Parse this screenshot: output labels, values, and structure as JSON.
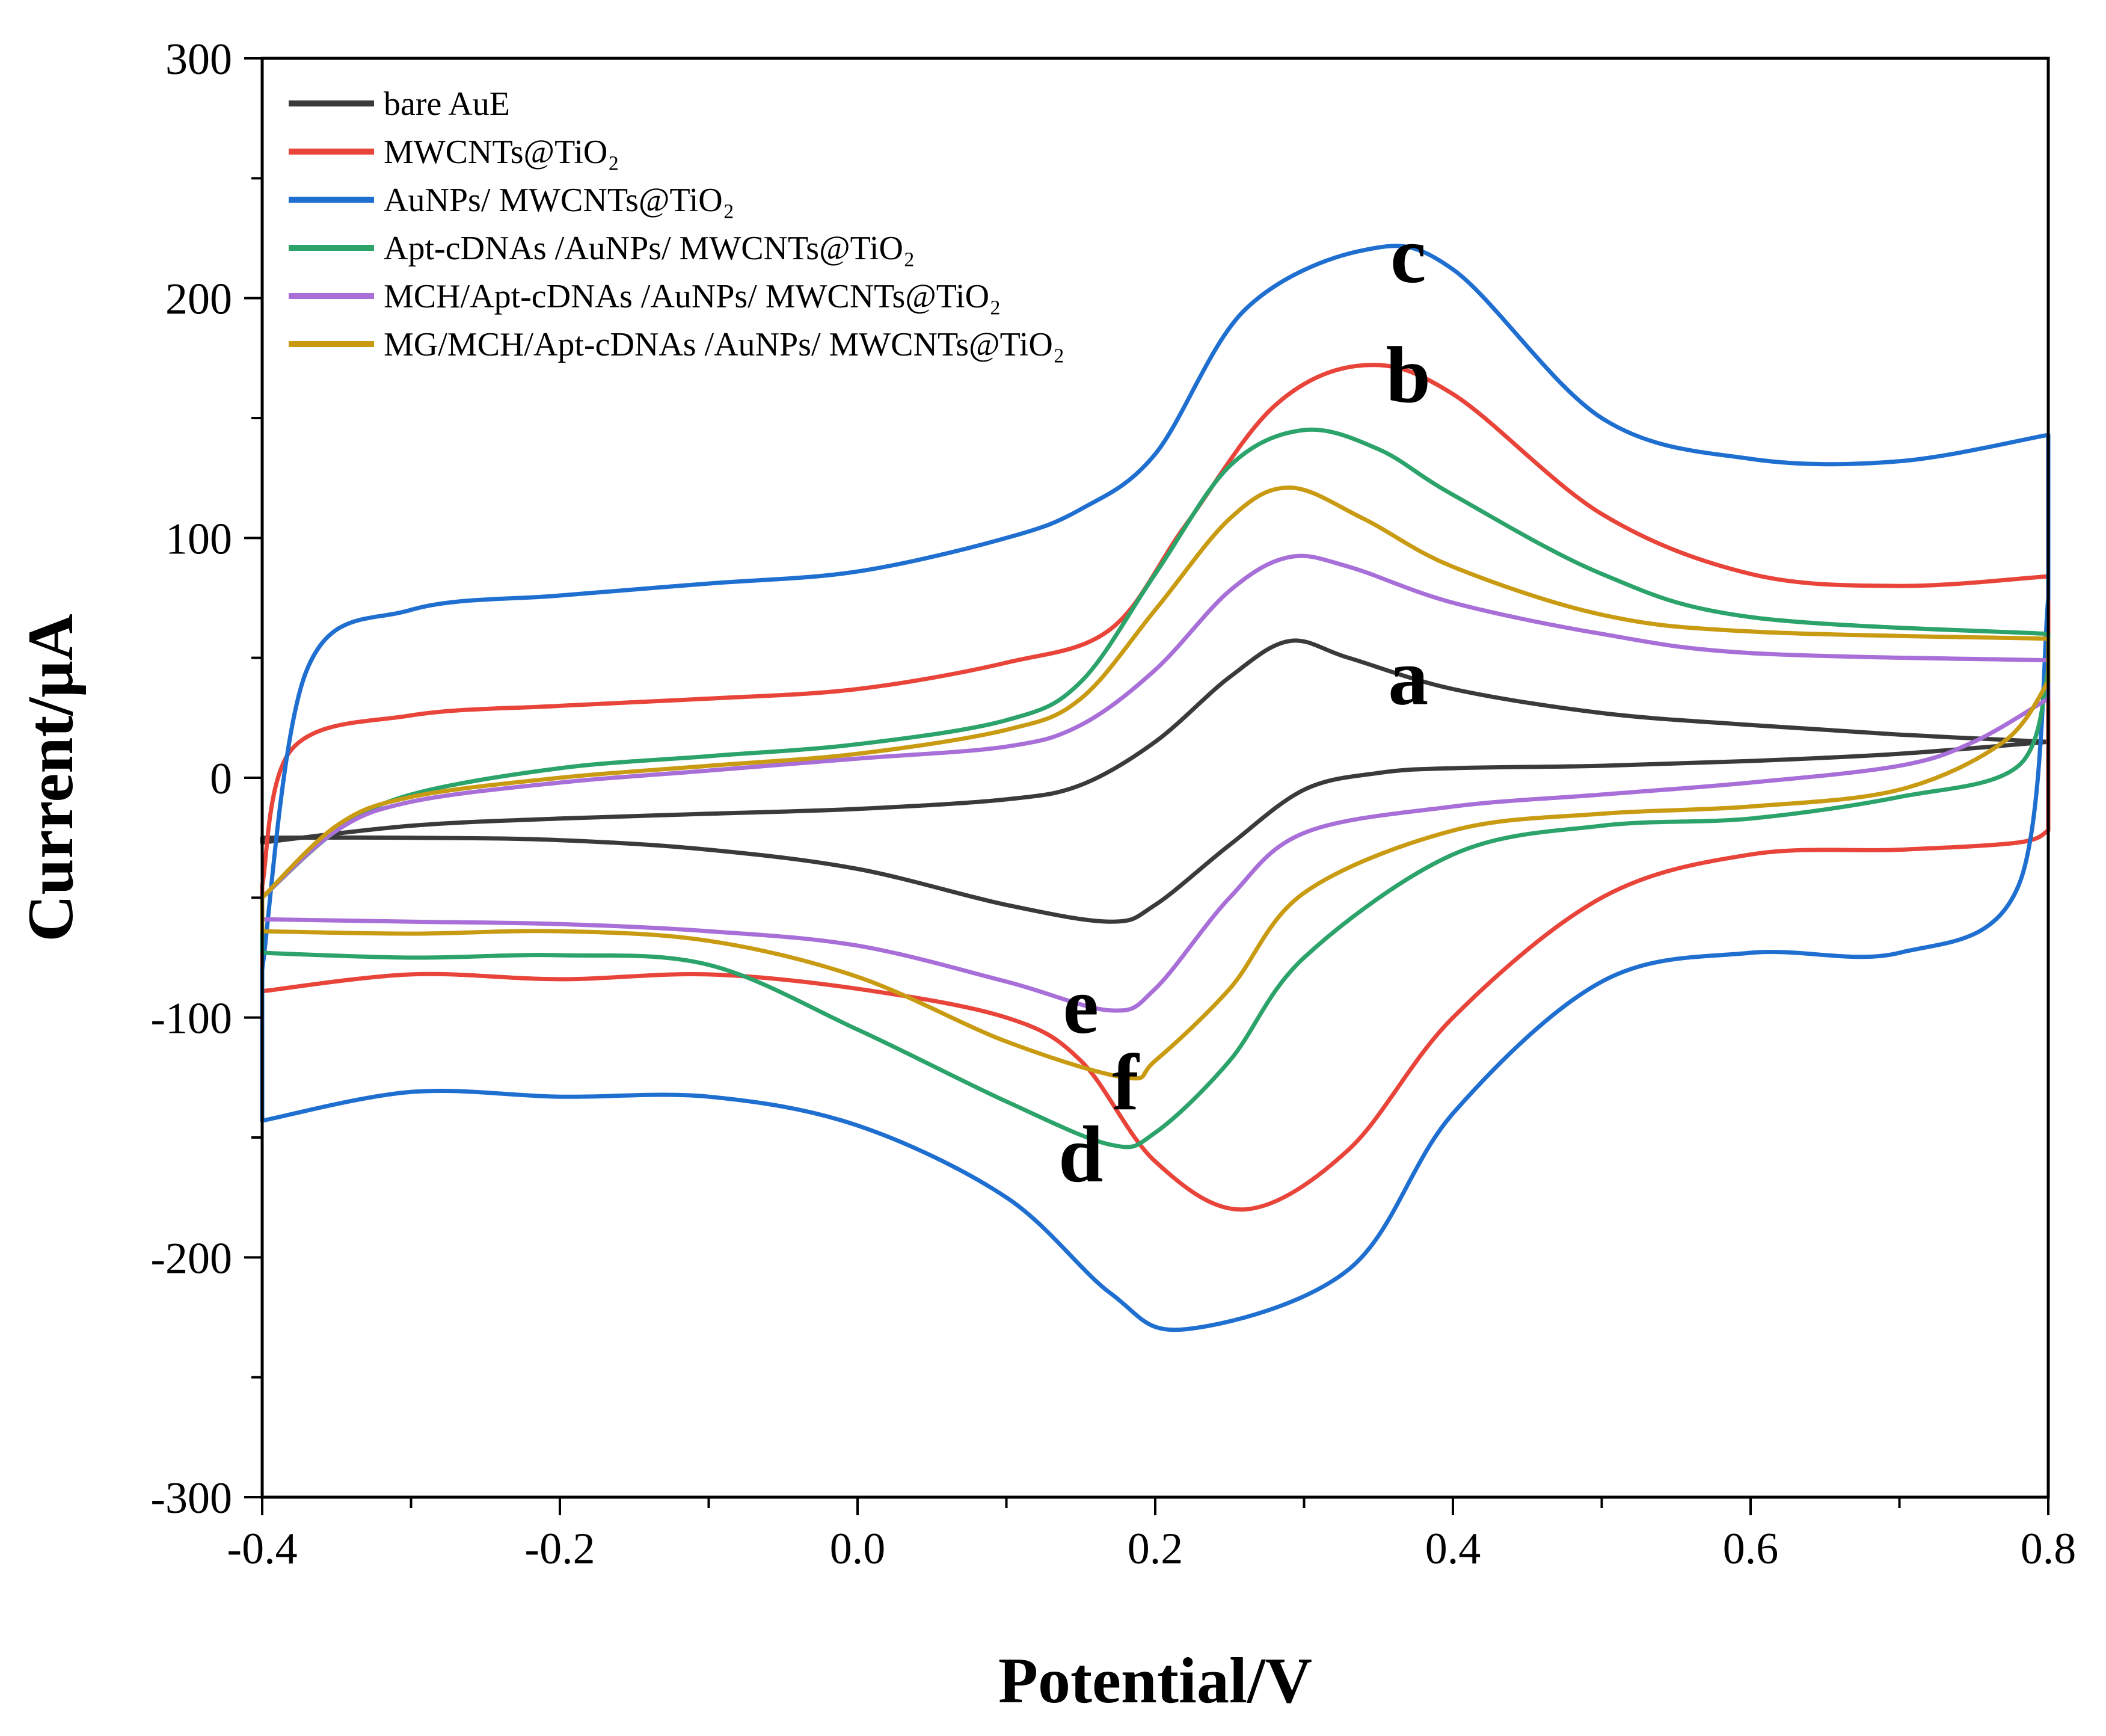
{
  "chart_data": {
    "type": "line",
    "title": "",
    "xlabel": "Potential/V",
    "ylabel": "Current/μA",
    "xlim": [
      -0.4,
      0.8
    ],
    "ylim": [
      -300,
      300
    ],
    "x_ticks": [
      -0.4,
      -0.2,
      0.0,
      0.2,
      0.4,
      0.6,
      0.8
    ],
    "x_tick_labels": [
      "-0.4",
      "-0.2",
      "0.0",
      "0.2",
      "0.4",
      "0.6",
      "0.8"
    ],
    "y_ticks": [
      -300,
      -200,
      -100,
      0,
      100,
      200,
      300
    ],
    "y_tick_labels": [
      "-300",
      "-200",
      "-100",
      "0",
      "100",
      "200",
      "300"
    ],
    "legend_position": "top-left",
    "series": [
      {
        "name": "bare AuE",
        "color": "#3a3a3a",
        "label": "a",
        "forward": [
          [
            -0.4,
            -27
          ],
          [
            -0.3,
            -20
          ],
          [
            -0.2,
            -17
          ],
          [
            -0.1,
            -15
          ],
          [
            0.0,
            -13
          ],
          [
            0.1,
            -9
          ],
          [
            0.15,
            -3
          ],
          [
            0.2,
            15
          ],
          [
            0.25,
            42
          ],
          [
            0.29,
            57
          ],
          [
            0.33,
            50
          ],
          [
            0.4,
            37
          ],
          [
            0.5,
            27
          ],
          [
            0.6,
            22
          ],
          [
            0.7,
            18
          ],
          [
            0.8,
            15
          ]
        ],
        "reverse": [
          [
            0.8,
            15
          ],
          [
            0.7,
            10
          ],
          [
            0.6,
            7
          ],
          [
            0.5,
            5
          ],
          [
            0.4,
            4
          ],
          [
            0.35,
            2
          ],
          [
            0.3,
            -5
          ],
          [
            0.25,
            -28
          ],
          [
            0.2,
            -53
          ],
          [
            0.17,
            -60
          ],
          [
            0.1,
            -53
          ],
          [
            0.0,
            -38
          ],
          [
            -0.1,
            -30
          ],
          [
            -0.2,
            -26
          ],
          [
            -0.3,
            -25
          ],
          [
            -0.4,
            -25
          ]
        ]
      },
      {
        "name": "MWCNTs@TiO₂",
        "color": "#e8443a",
        "label": "b",
        "forward": [
          [
            -0.4,
            -45
          ],
          [
            -0.38,
            12
          ],
          [
            -0.3,
            26
          ],
          [
            -0.2,
            30
          ],
          [
            -0.1,
            33
          ],
          [
            0.0,
            37
          ],
          [
            0.1,
            48
          ],
          [
            0.17,
            62
          ],
          [
            0.22,
            105
          ],
          [
            0.28,
            155
          ],
          [
            0.34,
            172
          ],
          [
            0.4,
            160
          ],
          [
            0.5,
            110
          ],
          [
            0.6,
            85
          ],
          [
            0.7,
            80
          ],
          [
            0.8,
            84
          ]
        ],
        "reverse": [
          [
            0.8,
            -22
          ],
          [
            0.78,
            -27
          ],
          [
            0.7,
            -30
          ],
          [
            0.6,
            -32
          ],
          [
            0.5,
            -50
          ],
          [
            0.4,
            -100
          ],
          [
            0.33,
            -155
          ],
          [
            0.26,
            -180
          ],
          [
            0.2,
            -160
          ],
          [
            0.15,
            -118
          ],
          [
            0.1,
            -100
          ],
          [
            0.0,
            -88
          ],
          [
            -0.1,
            -82
          ],
          [
            -0.2,
            -84
          ],
          [
            -0.3,
            -82
          ],
          [
            -0.4,
            -89
          ]
        ]
      },
      {
        "name": "AuNPs/ MWCNTs@TiO₂",
        "color": "#1f6fd1",
        "label": "c",
        "forward": [
          [
            -0.4,
            -80
          ],
          [
            -0.37,
            45
          ],
          [
            -0.3,
            70
          ],
          [
            -0.2,
            76
          ],
          [
            -0.1,
            81
          ],
          [
            0.0,
            86
          ],
          [
            0.1,
            100
          ],
          [
            0.15,
            112
          ],
          [
            0.2,
            135
          ],
          [
            0.26,
            195
          ],
          [
            0.34,
            220
          ],
          [
            0.4,
            212
          ],
          [
            0.5,
            150
          ],
          [
            0.6,
            133
          ],
          [
            0.7,
            132
          ],
          [
            0.8,
            143
          ]
        ],
        "reverse": [
          [
            0.8,
            75
          ],
          [
            0.78,
            -45
          ],
          [
            0.7,
            -73
          ],
          [
            0.6,
            -73
          ],
          [
            0.5,
            -85
          ],
          [
            0.4,
            -140
          ],
          [
            0.33,
            -205
          ],
          [
            0.22,
            -230
          ],
          [
            0.17,
            -215
          ],
          [
            0.1,
            -175
          ],
          [
            0.0,
            -145
          ],
          [
            -0.1,
            -133
          ],
          [
            -0.2,
            -133
          ],
          [
            -0.3,
            -131
          ],
          [
            -0.4,
            -143
          ]
        ]
      },
      {
        "name": "Apt-cDNAs /AuNPs/ MWCNTs@TiO₂",
        "color": "#2ba36a",
        "label": "d",
        "forward": [
          [
            -0.4,
            -50
          ],
          [
            -0.35,
            -22
          ],
          [
            -0.3,
            -7
          ],
          [
            -0.2,
            4
          ],
          [
            -0.1,
            9
          ],
          [
            0.0,
            14
          ],
          [
            0.1,
            24
          ],
          [
            0.15,
            40
          ],
          [
            0.2,
            85
          ],
          [
            0.25,
            130
          ],
          [
            0.3,
            145
          ],
          [
            0.35,
            137
          ],
          [
            0.4,
            118
          ],
          [
            0.5,
            85
          ],
          [
            0.6,
            67
          ],
          [
            0.8,
            60
          ]
        ],
        "reverse": [
          [
            0.8,
            45
          ],
          [
            0.78,
            5
          ],
          [
            0.7,
            -8
          ],
          [
            0.6,
            -17
          ],
          [
            0.5,
            -20
          ],
          [
            0.4,
            -32
          ],
          [
            0.3,
            -75
          ],
          [
            0.25,
            -118
          ],
          [
            0.2,
            -148
          ],
          [
            0.17,
            -153
          ],
          [
            0.1,
            -135
          ],
          [
            0.0,
            -105
          ],
          [
            -0.1,
            -78
          ],
          [
            -0.2,
            -74
          ],
          [
            -0.3,
            -75
          ],
          [
            -0.4,
            -73
          ]
        ]
      },
      {
        "name": "MCH/Apt-cDNAs /AuNPs/ MWCNTs@TiO₂",
        "color": "#a86fd8",
        "label": "e",
        "forward": [
          [
            -0.4,
            -50
          ],
          [
            -0.35,
            -22
          ],
          [
            -0.3,
            -10
          ],
          [
            -0.2,
            -2
          ],
          [
            -0.1,
            3
          ],
          [
            0.0,
            8
          ],
          [
            0.1,
            13
          ],
          [
            0.15,
            22
          ],
          [
            0.2,
            45
          ],
          [
            0.25,
            78
          ],
          [
            0.29,
            92
          ],
          [
            0.33,
            88
          ],
          [
            0.4,
            73
          ],
          [
            0.5,
            60
          ],
          [
            0.6,
            52
          ],
          [
            0.8,
            49
          ]
        ],
        "reverse": [
          [
            0.8,
            33
          ],
          [
            0.75,
            15
          ],
          [
            0.7,
            5
          ],
          [
            0.6,
            -2
          ],
          [
            0.5,
            -7
          ],
          [
            0.4,
            -12
          ],
          [
            0.3,
            -23
          ],
          [
            0.25,
            -50
          ],
          [
            0.2,
            -88
          ],
          [
            0.17,
            -97
          ],
          [
            0.1,
            -85
          ],
          [
            0.0,
            -70
          ],
          [
            -0.1,
            -64
          ],
          [
            -0.2,
            -61
          ],
          [
            -0.3,
            -60
          ],
          [
            -0.4,
            -59
          ]
        ]
      },
      {
        "name": "MG/MCH/Apt-cDNAs /AuNPs/ MWCNTs@TiO₂",
        "color": "#c99b12",
        "label": "f",
        "forward": [
          [
            -0.4,
            -50
          ],
          [
            -0.35,
            -20
          ],
          [
            -0.3,
            -8
          ],
          [
            -0.2,
            0
          ],
          [
            -0.1,
            5
          ],
          [
            0.0,
            10
          ],
          [
            0.1,
            20
          ],
          [
            0.15,
            33
          ],
          [
            0.2,
            70
          ],
          [
            0.25,
            108
          ],
          [
            0.29,
            121
          ],
          [
            0.34,
            108
          ],
          [
            0.4,
            88
          ],
          [
            0.5,
            68
          ],
          [
            0.6,
            61
          ],
          [
            0.8,
            58
          ]
        ],
        "reverse": [
          [
            0.8,
            40
          ],
          [
            0.77,
            15
          ],
          [
            0.7,
            -5
          ],
          [
            0.6,
            -12
          ],
          [
            0.5,
            -15
          ],
          [
            0.4,
            -22
          ],
          [
            0.3,
            -48
          ],
          [
            0.25,
            -88
          ],
          [
            0.2,
            -118
          ],
          [
            0.18,
            -125
          ],
          [
            0.1,
            -110
          ],
          [
            0.0,
            -83
          ],
          [
            -0.1,
            -68
          ],
          [
            -0.2,
            -64
          ],
          [
            -0.3,
            -65
          ],
          [
            -0.4,
            -64
          ]
        ]
      }
    ],
    "annotations": [
      {
        "text": "c",
        "x": 0.37,
        "y": 218
      },
      {
        "text": "b",
        "x": 0.37,
        "y": 168
      },
      {
        "text": "a",
        "x": 0.37,
        "y": 42
      },
      {
        "text": "e",
        "x": 0.15,
        "y": -95
      },
      {
        "text": "f",
        "x": 0.18,
        "y": -127
      },
      {
        "text": "d",
        "x": 0.15,
        "y": -157
      }
    ]
  }
}
